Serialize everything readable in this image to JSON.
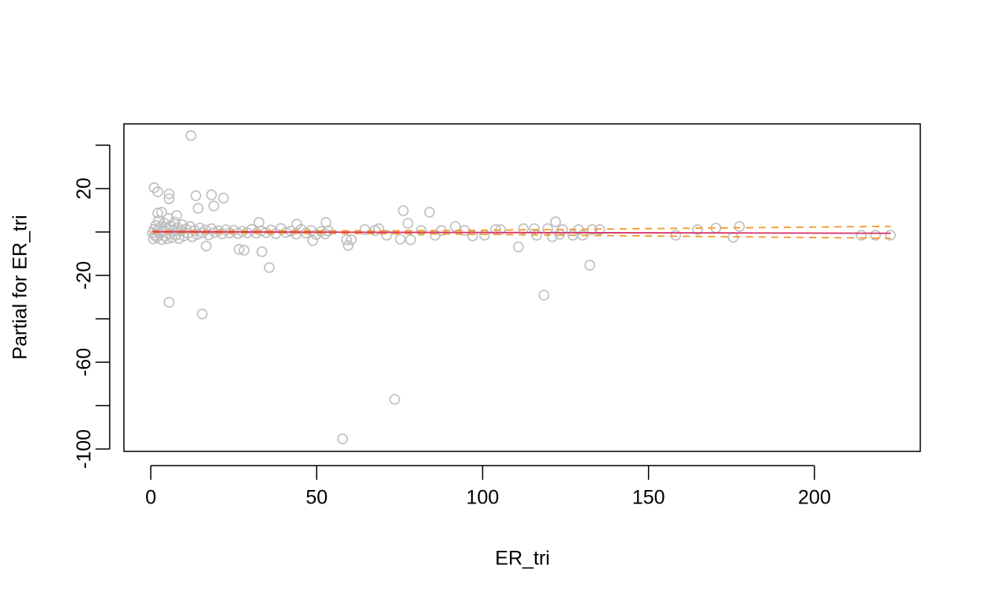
{
  "chart_data": {
    "type": "scatter",
    "xlabel": "ER_tri",
    "ylabel": "Partial for ER_tri",
    "xlim": [
      -8.1,
      231.9
    ],
    "ylim": [
      -101.1,
      49.8
    ],
    "xticks": [
      0,
      50,
      100,
      150,
      200
    ],
    "yticks": [
      -100,
      -60,
      -20,
      20
    ],
    "yticks_unlabeled": [
      -80,
      -40,
      0,
      40
    ],
    "points": {
      "color": "#bebebe",
      "x": [
        0.5,
        0.8,
        1,
        1.2,
        1.5,
        1.8,
        2,
        2.3,
        2.6,
        3,
        3.3,
        3.6,
        4,
        4.3,
        4.6,
        5,
        5.3,
        5.6,
        6,
        6.4,
        6.8,
        7.2,
        7.6,
        8,
        8.5,
        9,
        9.5,
        10,
        10.6,
        11.2,
        11.8,
        12.5,
        13.2,
        14,
        14.8,
        15.6,
        16.5,
        17.4,
        18.3,
        19.3,
        20.4,
        21.5,
        22.6,
        23.8,
        25,
        26.3,
        27.6,
        29,
        30.4,
        31.8,
        33.2,
        34.7,
        36.2,
        37.7,
        39.2,
        40.7,
        42.2,
        43.8,
        45.3,
        46.8,
        48.3,
        49.8,
        51.3,
        52.5,
        53.5,
        12.1,
        1,
        2.1,
        13.6,
        18.3,
        21.9,
        5.5,
        5.5,
        19,
        2.1,
        3.3,
        7.8,
        14.3,
        5.5,
        15.5,
        16.7,
        26.6,
        28.1,
        33.5,
        35.7,
        57.8,
        73.5,
        76.1,
        84,
        118.5,
        110.8,
        132.3,
        122,
        177.4,
        170.3,
        175.5,
        158.2,
        164.8,
        214.1,
        218.4,
        222.9,
        59.5,
        59,
        60.4,
        77.5,
        32.6,
        52.8,
        44,
        48.8,
        75.2,
        78.3,
        91.8,
        97,
        100.6,
        103.9,
        105.4,
        112.3,
        115.6,
        116.3,
        119.6,
        121,
        123.2,
        124.1,
        127.2,
        128.9,
        130.1,
        133,
        135.3,
        64.5,
        67.6,
        71.1,
        68.7,
        85.7,
        87.6,
        94.6,
        81.5
      ],
      "values": [
        -0.5,
        -3.2,
        1.2,
        -1.5,
        3,
        -2.3,
        0.8,
        5.2,
        -1,
        2.4,
        -3.5,
        0.4,
        4.1,
        -2,
        1.6,
        -3.1,
        6.2,
        -0.8,
        2.8,
        -2.6,
        0.9,
        4.5,
        -1.4,
        2,
        -3,
        0.5,
        3.3,
        -1.8,
        1.4,
        -0.6,
        2.5,
        -2.2,
        0.7,
        -1.1,
        1.8,
        -0.4,
        0.9,
        -1.3,
        1.5,
        -0.2,
        0.6,
        -0.9,
        1,
        -0.5,
        0.8,
        -0.7,
        0.3,
        -0.4,
        1.2,
        -0.6,
        0.5,
        -0.3,
        0.9,
        -0.8,
        1.6,
        -0.2,
        0.4,
        -1,
        1.2,
        -0.5,
        0.7,
        -1.2,
        0.3,
        -0.9,
        0.6,
        44.4,
        20.4,
        18.5,
        16.7,
        17.1,
        15.6,
        17.5,
        15.3,
        12,
        8.7,
        9.1,
        7.6,
        10.9,
        -32.4,
        -37.8,
        -6.5,
        -8,
        -8.4,
        -9.1,
        -16.4,
        -95.3,
        -77.1,
        9.8,
        9.1,
        -29.1,
        -6.9,
        -15.3,
        4.7,
        2.5,
        1.8,
        -2.5,
        -1.5,
        1.1,
        -1.5,
        -1.5,
        -1.5,
        -6.2,
        -3.6,
        -3.6,
        4,
        4.4,
        4.4,
        3.6,
        -4,
        -3.3,
        -3.6,
        2.5,
        -1.8,
        -1.5,
        1.1,
        1.1,
        1.5,
        1.5,
        -1.5,
        1.5,
        -2.2,
        -1.1,
        1.1,
        -1.5,
        1.1,
        -1.5,
        1.1,
        1.1,
        1.1,
        0.7,
        -1.5,
        1.5,
        -1.5,
        0.7,
        0.7,
        0.7
      ]
    },
    "lines": [
      {
        "color": "#f29b25",
        "dash": true,
        "x": [
          0.5,
          85,
          223
        ],
        "values": [
          0.5,
          0.6,
          2.6
        ]
      },
      {
        "color": "#f29b25",
        "dash": true,
        "x": [
          0.5,
          85,
          223
        ],
        "values": [
          -0.3,
          -0.9,
          -2.9
        ]
      },
      {
        "color": "#d6336a",
        "dash": false,
        "x": [
          0.5,
          85,
          223
        ],
        "values": [
          0.1,
          -0.2,
          -0.6
        ]
      }
    ]
  }
}
